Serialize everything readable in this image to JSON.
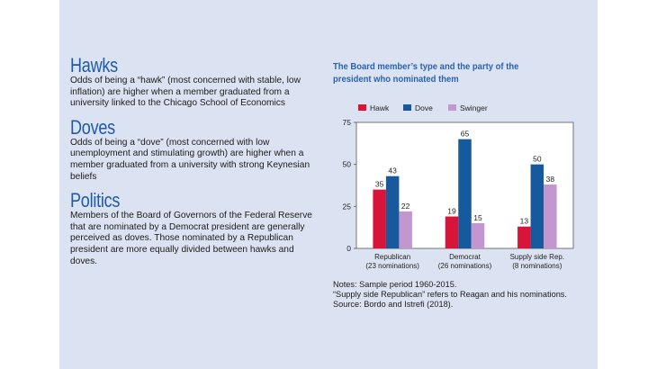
{
  "sections": [
    {
      "heading": "Hawks",
      "text": "Odds of being a “hawk” (most concerned with stable, low inflation) are higher when a member graduated from a university linked to the Chicago School of Economics"
    },
    {
      "heading": "Doves",
      "text": "Odds of being a “dove” (most concerned with low unemployment and stimulating growth) are higher when a member graduated from a university with strong Keynesian beliefs"
    },
    {
      "heading": "Politics",
      "text": "Members of the Board of Governors of the Federal Reserve that are nominated by a Democrat president are generally perceived as doves. Those nominated by a Republican president are more equally divided between hawks and doves."
    }
  ],
  "notes": [
    "Notes: Sample period 1960-2015.",
    "“Supply side Republican” refers to Reagan and his nominations.",
    "Source: Bordo and Istrefi (2018)."
  ],
  "colors": {
    "hawk": "#d9143a",
    "dove": "#16599d",
    "swinger": "#c496cf",
    "heading": "#1f5aa8"
  },
  "chart_data": {
    "type": "bar",
    "title": "The Board member’s type and the party of the president who nominated them",
    "categories": [
      "Republican",
      "Democrat",
      "Supply side Rep."
    ],
    "category_sublabels": [
      "(23 nominations)",
      "(26 nominations)",
      "(8 nominations)"
    ],
    "series": [
      {
        "name": "Hawk",
        "values": [
          35,
          19,
          13
        ]
      },
      {
        "name": "Dove",
        "values": [
          43,
          65,
          50
        ]
      },
      {
        "name": "Swinger",
        "values": [
          22,
          15,
          38
        ]
      }
    ],
    "ylim": [
      0,
      75
    ],
    "yticks": [
      0,
      25,
      50,
      75
    ],
    "legend": "top",
    "grid": false
  }
}
